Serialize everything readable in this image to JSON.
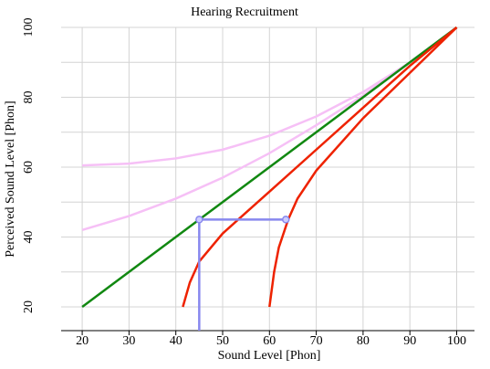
{
  "chart_data": {
    "type": "line",
    "title": "Hearing Recruitment",
    "x_label": "Sound Level [Phon]",
    "y_label": "Perceived Sound Level [Phon]",
    "xlim": [
      15.5,
      103.8
    ],
    "ylim": [
      13.2,
      100
    ],
    "xticks": [
      20,
      30,
      40,
      50,
      60,
      70,
      80,
      90,
      100
    ],
    "yticks": [
      20,
      40,
      60,
      80,
      100
    ],
    "yminor": [
      30,
      50,
      70,
      90
    ],
    "grid": true,
    "series": [
      {
        "color": "#f6c0f6",
        "x": [
          20,
          30,
          40,
          50,
          60,
          70,
          80,
          90,
          100
        ],
        "values": [
          60.5,
          61,
          62.5,
          65,
          69,
          74.5,
          81.5,
          90,
          100
        ]
      },
      {
        "color": "#f6c0f6",
        "x": [
          20,
          30,
          40,
          50,
          60,
          70,
          80,
          90,
          100
        ],
        "values": [
          42,
          46,
          51,
          57,
          64,
          72,
          80.5,
          90,
          100
        ]
      },
      {
        "color": "#118811",
        "x": [
          20,
          100
        ],
        "values": [
          20,
          100
        ]
      },
      {
        "color": "#ee2200",
        "x": [
          41.5,
          43,
          45,
          50,
          55,
          60,
          70,
          80,
          90,
          100
        ],
        "values": [
          20,
          27,
          33,
          41,
          47,
          53,
          65,
          77,
          89,
          100
        ]
      },
      {
        "color": "#ee2200",
        "x": [
          60,
          61,
          62,
          64,
          66,
          70,
          80,
          90,
          100
        ],
        "values": [
          20,
          30,
          37,
          45,
          51,
          59,
          74,
          87,
          100
        ]
      },
      {
        "color": "#8888ee",
        "x": [
          45,
          45,
          63.5
        ],
        "values": [
          13.2,
          45,
          45
        ]
      }
    ],
    "points": {
      "color": "#8888ee",
      "x": [
        45,
        63.5
      ],
      "values": [
        45,
        45
      ]
    }
  }
}
